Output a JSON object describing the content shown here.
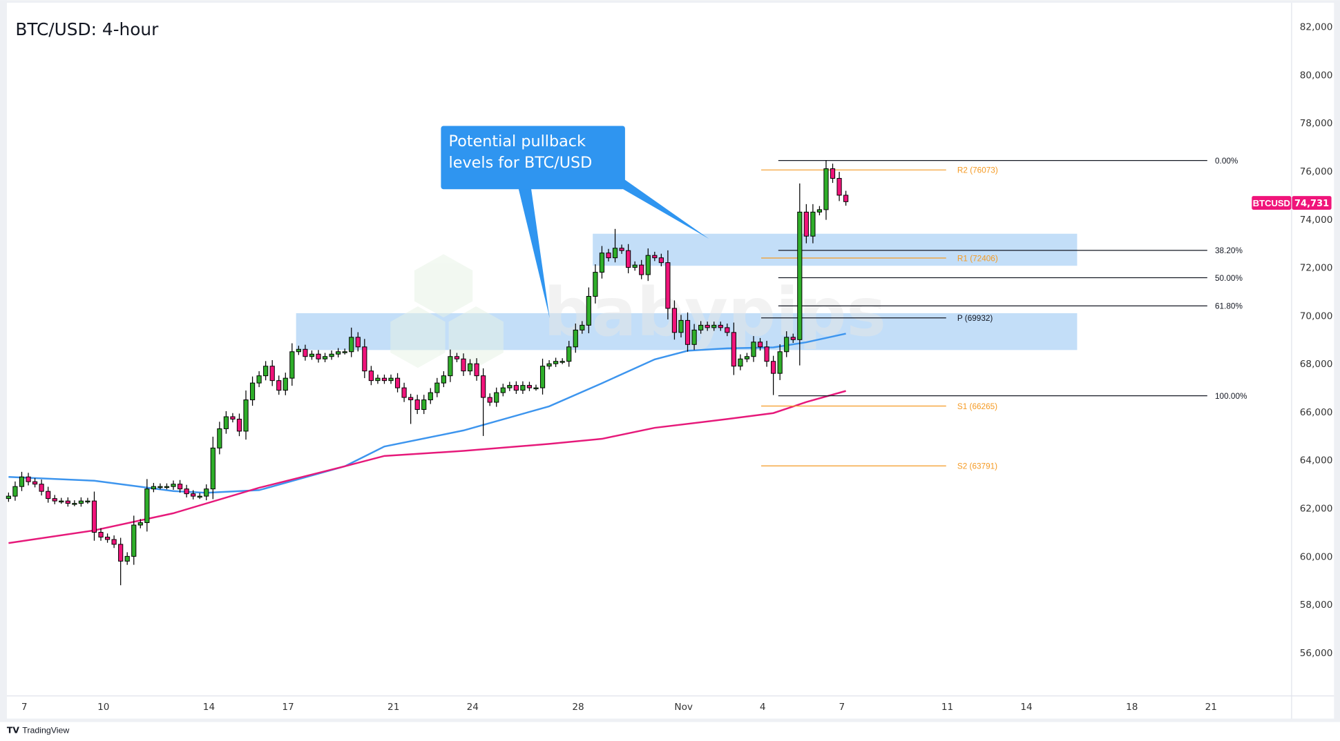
{
  "title": "BTC/USD: 4-hour",
  "footer": {
    "brand": "TradingView"
  },
  "watermark": "babypips",
  "callout": {
    "line1": "Potential pullback",
    "line2": "levels for BTC/USD",
    "color": "#2f95f0"
  },
  "price_tag": {
    "symbol": "BTCUSD",
    "value": "74,731",
    "color": "#f0147a"
  },
  "colors": {
    "up": "#2fae2a",
    "down": "#f0147a",
    "ma_fast": "#3d95ee",
    "ma_slow": "#e6197a",
    "pivot": "#f59a23",
    "zone": "#bcdaf7"
  },
  "chart_data": {
    "type": "candlestick",
    "title": "BTC/USD: 4-hour",
    "ylim": [
      54500,
      83000
    ],
    "y_ticks": [
      "82,000",
      "80,000",
      "78,000",
      "76,000",
      "74,000",
      "72,000",
      "70,000",
      "68,000",
      "66,000",
      "64,000",
      "62,000",
      "60,000",
      "58,000",
      "56,000"
    ],
    "y_tick_values": [
      82000,
      80000,
      78000,
      76000,
      74000,
      72000,
      70000,
      68000,
      66000,
      64000,
      62000,
      60000,
      58000,
      56000
    ],
    "x_ticks": [
      {
        "label": "7",
        "candle": 2
      },
      {
        "label": "10",
        "candle": 14
      },
      {
        "label": "14",
        "candle": 30
      },
      {
        "label": "17",
        "candle": 42
      },
      {
        "label": "21",
        "candle": 58
      },
      {
        "label": "24",
        "candle": 70
      },
      {
        "label": "28",
        "candle": 86
      },
      {
        "label": "Nov",
        "candle": 102
      },
      {
        "label": "4",
        "candle": 114
      },
      {
        "label": "7",
        "candle": 126
      },
      {
        "label": "11",
        "candle": 142
      },
      {
        "label": "14",
        "candle": 154
      },
      {
        "label": "18",
        "candle": 170
      },
      {
        "label": "21",
        "candle": 182
      }
    ],
    "open_first": 62400,
    "closes": [
      62500,
      62900,
      63300,
      63100,
      63000,
      62700,
      62400,
      62300,
      62300,
      62200,
      62200,
      62300,
      62300,
      61000,
      60800,
      60700,
      60500,
      59800,
      60000,
      61300,
      61400,
      62800,
      62900,
      62900,
      62900,
      63000,
      62800,
      62600,
      62500,
      62500,
      62800,
      64500,
      65300,
      65800,
      65700,
      65200,
      66500,
      67200,
      67500,
      67900,
      67300,
      66900,
      67400,
      68500,
      68600,
      68300,
      68400,
      68200,
      68300,
      68400,
      68500,
      68500,
      69100,
      68700,
      67700,
      67300,
      67400,
      67300,
      67400,
      67000,
      66600,
      66500,
      66100,
      66500,
      66800,
      67200,
      67500,
      68300,
      68200,
      67700,
      68000,
      67500,
      66600,
      66400,
      66800,
      67000,
      67100,
      66900,
      67100,
      67000,
      67000,
      67900,
      68000,
      68100,
      68100,
      68700,
      69400,
      69600,
      70800,
      71800,
      72600,
      72400,
      72800,
      72700,
      72000,
      72100,
      71700,
      72500,
      72400,
      72200,
      70300,
      69300,
      69800,
      68800,
      69400,
      69600,
      69500,
      69600,
      69500,
      69300,
      67900,
      68200,
      68300,
      68900,
      68700,
      68100,
      67600,
      68500,
      69100,
      69000,
      74300,
      73300,
      74300,
      74400,
      76100,
      75700,
      75000,
      74731
    ],
    "wick_extremes": {
      "low": [
        [
          17,
          58800
        ],
        [
          116,
          66700
        ],
        [
          72,
          65000
        ],
        [
          61,
          65500
        ]
      ],
      "high": [
        [
          124,
          76460
        ],
        [
          92,
          73600
        ],
        [
          52,
          69500
        ]
      ]
    },
    "series": [
      {
        "name": "",
        "role": "moving-average-fast",
        "points": [
          [
            0,
            63300
          ],
          [
            13,
            63140
          ],
          [
            25,
            62710
          ],
          [
            30,
            62640
          ],
          [
            38,
            62750
          ],
          [
            51,
            63740
          ],
          [
            57,
            64560
          ],
          [
            69,
            65230
          ],
          [
            82,
            66230
          ],
          [
            90,
            67190
          ],
          [
            98,
            68180
          ],
          [
            103,
            68540
          ],
          [
            109,
            68640
          ],
          [
            116,
            68680
          ],
          [
            121,
            68890
          ],
          [
            127,
            69250
          ]
        ]
      },
      {
        "name": "",
        "role": "moving-average-slow",
        "points": [
          [
            0,
            60550
          ],
          [
            13,
            61080
          ],
          [
            25,
            61790
          ],
          [
            38,
            62850
          ],
          [
            51,
            63740
          ],
          [
            57,
            64170
          ],
          [
            69,
            64380
          ],
          [
            82,
            64670
          ],
          [
            90,
            64880
          ],
          [
            98,
            65340
          ],
          [
            109,
            65700
          ],
          [
            116,
            65950
          ],
          [
            121,
            66410
          ],
          [
            127,
            66870
          ]
        ]
      }
    ],
    "fibonacci": {
      "high": 76460,
      "low": 66700,
      "levels": [
        {
          "label": "0.00%",
          "ratio": 0
        },
        {
          "label": "38.20%",
          "ratio": 0.382
        },
        {
          "label": "50.00%",
          "ratio": 0.5
        },
        {
          "label": "61.80%",
          "ratio": 0.618
        },
        {
          "label": "100.00%",
          "ratio": 1
        }
      ]
    },
    "pivots": [
      {
        "label": "R2 (76073)",
        "value": 76073,
        "kind": "resistance"
      },
      {
        "label": "R1 (72406)",
        "value": 72406,
        "kind": "resistance"
      },
      {
        "label": "P (69932)",
        "value": 69932,
        "kind": "pivot"
      },
      {
        "label": "S1 (66265)",
        "value": 66265,
        "kind": "support"
      },
      {
        "label": "S2 (63791)",
        "value": 63791,
        "kind": "support"
      }
    ],
    "zones": [
      {
        "top": 73400,
        "bottom": 72070,
        "from_candle": 89
      },
      {
        "top": 70100,
        "bottom": 68570,
        "from_candle": 44
      }
    ],
    "last_price": 74731
  }
}
